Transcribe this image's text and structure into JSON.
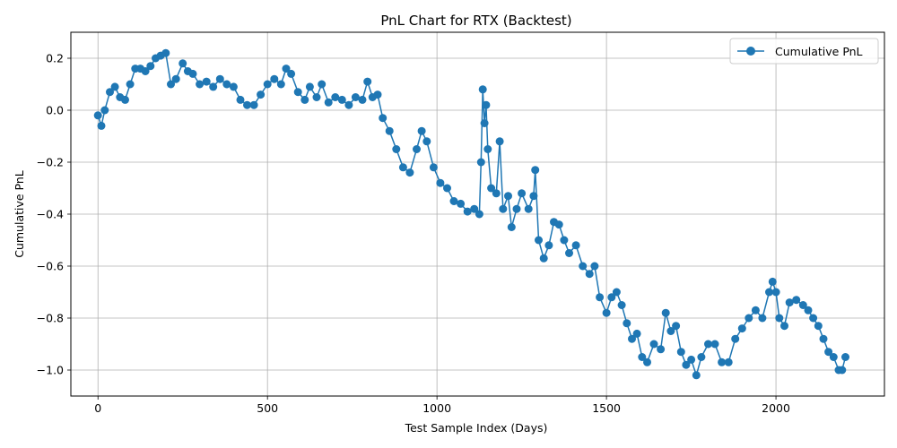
{
  "chart_data": {
    "type": "line",
    "title": "PnL Chart for RTX (Backtest)",
    "xlabel": "Test Sample Index (Days)",
    "ylabel": "Cumulative PnL",
    "xlim": [
      -80,
      2320
    ],
    "ylim": [
      -1.1,
      0.3
    ],
    "x_ticks": [
      0,
      500,
      1000,
      1500,
      2000
    ],
    "x_tick_labels": [
      "0",
      "500",
      "1000",
      "1500",
      "2000"
    ],
    "y_ticks": [
      -1.0,
      -0.8,
      -0.6,
      -0.4,
      -0.2,
      0.0,
      0.2
    ],
    "y_tick_labels": [
      "−1.0",
      "−0.8",
      "−0.6",
      "−0.4",
      "−0.2",
      "0.0",
      "0.2"
    ],
    "grid": true,
    "legend_position": "top-right",
    "series": [
      {
        "name": "Cumulative PnL",
        "color": "#1f77b4",
        "marker": "circle",
        "points": [
          [
            0,
            -0.02
          ],
          [
            10,
            -0.06
          ],
          [
            20,
            0.0
          ],
          [
            35,
            0.07
          ],
          [
            50,
            0.09
          ],
          [
            65,
            0.05
          ],
          [
            80,
            0.04
          ],
          [
            95,
            0.1
          ],
          [
            110,
            0.16
          ],
          [
            125,
            0.16
          ],
          [
            140,
            0.15
          ],
          [
            155,
            0.17
          ],
          [
            170,
            0.2
          ],
          [
            185,
            0.21
          ],
          [
            200,
            0.22
          ],
          [
            215,
            0.1
          ],
          [
            230,
            0.12
          ],
          [
            250,
            0.18
          ],
          [
            265,
            0.15
          ],
          [
            280,
            0.14
          ],
          [
            300,
            0.1
          ],
          [
            320,
            0.11
          ],
          [
            340,
            0.09
          ],
          [
            360,
            0.12
          ],
          [
            380,
            0.1
          ],
          [
            400,
            0.09
          ],
          [
            420,
            0.04
          ],
          [
            440,
            0.02
          ],
          [
            460,
            0.02
          ],
          [
            480,
            0.06
          ],
          [
            500,
            0.1
          ],
          [
            520,
            0.12
          ],
          [
            540,
            0.1
          ],
          [
            555,
            0.16
          ],
          [
            570,
            0.14
          ],
          [
            590,
            0.07
          ],
          [
            610,
            0.04
          ],
          [
            625,
            0.09
          ],
          [
            645,
            0.05
          ],
          [
            660,
            0.1
          ],
          [
            680,
            0.03
          ],
          [
            700,
            0.05
          ],
          [
            720,
            0.04
          ],
          [
            740,
            0.02
          ],
          [
            760,
            0.05
          ],
          [
            780,
            0.04
          ],
          [
            795,
            0.11
          ],
          [
            810,
            0.05
          ],
          [
            825,
            0.06
          ],
          [
            840,
            -0.03
          ],
          [
            860,
            -0.08
          ],
          [
            880,
            -0.15
          ],
          [
            900,
            -0.22
          ],
          [
            920,
            -0.24
          ],
          [
            940,
            -0.15
          ],
          [
            955,
            -0.08
          ],
          [
            970,
            -0.12
          ],
          [
            990,
            -0.22
          ],
          [
            1010,
            -0.28
          ],
          [
            1030,
            -0.3
          ],
          [
            1050,
            -0.35
          ],
          [
            1070,
            -0.36
          ],
          [
            1090,
            -0.39
          ],
          [
            1110,
            -0.38
          ],
          [
            1125,
            -0.4
          ],
          [
            1130,
            -0.2
          ],
          [
            1135,
            0.08
          ],
          [
            1140,
            -0.05
          ],
          [
            1145,
            0.02
          ],
          [
            1150,
            -0.15
          ],
          [
            1160,
            -0.3
          ],
          [
            1175,
            -0.32
          ],
          [
            1185,
            -0.12
          ],
          [
            1195,
            -0.38
          ],
          [
            1210,
            -0.33
          ],
          [
            1220,
            -0.45
          ],
          [
            1235,
            -0.38
          ],
          [
            1250,
            -0.32
          ],
          [
            1270,
            -0.38
          ],
          [
            1285,
            -0.33
          ],
          [
            1290,
            -0.23
          ],
          [
            1300,
            -0.5
          ],
          [
            1315,
            -0.57
          ],
          [
            1330,
            -0.52
          ],
          [
            1345,
            -0.43
          ],
          [
            1360,
            -0.44
          ],
          [
            1375,
            -0.5
          ],
          [
            1390,
            -0.55
          ],
          [
            1410,
            -0.52
          ],
          [
            1430,
            -0.6
          ],
          [
            1450,
            -0.63
          ],
          [
            1465,
            -0.6
          ],
          [
            1480,
            -0.72
          ],
          [
            1500,
            -0.78
          ],
          [
            1515,
            -0.72
          ],
          [
            1530,
            -0.7
          ],
          [
            1545,
            -0.75
          ],
          [
            1560,
            -0.82
          ],
          [
            1575,
            -0.88
          ],
          [
            1590,
            -0.86
          ],
          [
            1605,
            -0.95
          ],
          [
            1620,
            -0.97
          ],
          [
            1640,
            -0.9
          ],
          [
            1660,
            -0.92
          ],
          [
            1675,
            -0.78
          ],
          [
            1690,
            -0.85
          ],
          [
            1705,
            -0.83
          ],
          [
            1720,
            -0.93
          ],
          [
            1735,
            -0.98
          ],
          [
            1750,
            -0.96
          ],
          [
            1765,
            -1.02
          ],
          [
            1780,
            -0.95
          ],
          [
            1800,
            -0.9
          ],
          [
            1820,
            -0.9
          ],
          [
            1840,
            -0.97
          ],
          [
            1860,
            -0.97
          ],
          [
            1880,
            -0.88
          ],
          [
            1900,
            -0.84
          ],
          [
            1920,
            -0.8
          ],
          [
            1940,
            -0.77
          ],
          [
            1960,
            -0.8
          ],
          [
            1980,
            -0.7
          ],
          [
            1990,
            -0.66
          ],
          [
            2000,
            -0.7
          ],
          [
            2010,
            -0.8
          ],
          [
            2025,
            -0.83
          ],
          [
            2040,
            -0.74
          ],
          [
            2060,
            -0.73
          ],
          [
            2080,
            -0.75
          ],
          [
            2095,
            -0.77
          ],
          [
            2110,
            -0.8
          ],
          [
            2125,
            -0.83
          ],
          [
            2140,
            -0.88
          ],
          [
            2155,
            -0.93
          ],
          [
            2170,
            -0.95
          ],
          [
            2185,
            -1.0
          ],
          [
            2195,
            -1.0
          ],
          [
            2205,
            -0.95
          ]
        ]
      }
    ]
  }
}
